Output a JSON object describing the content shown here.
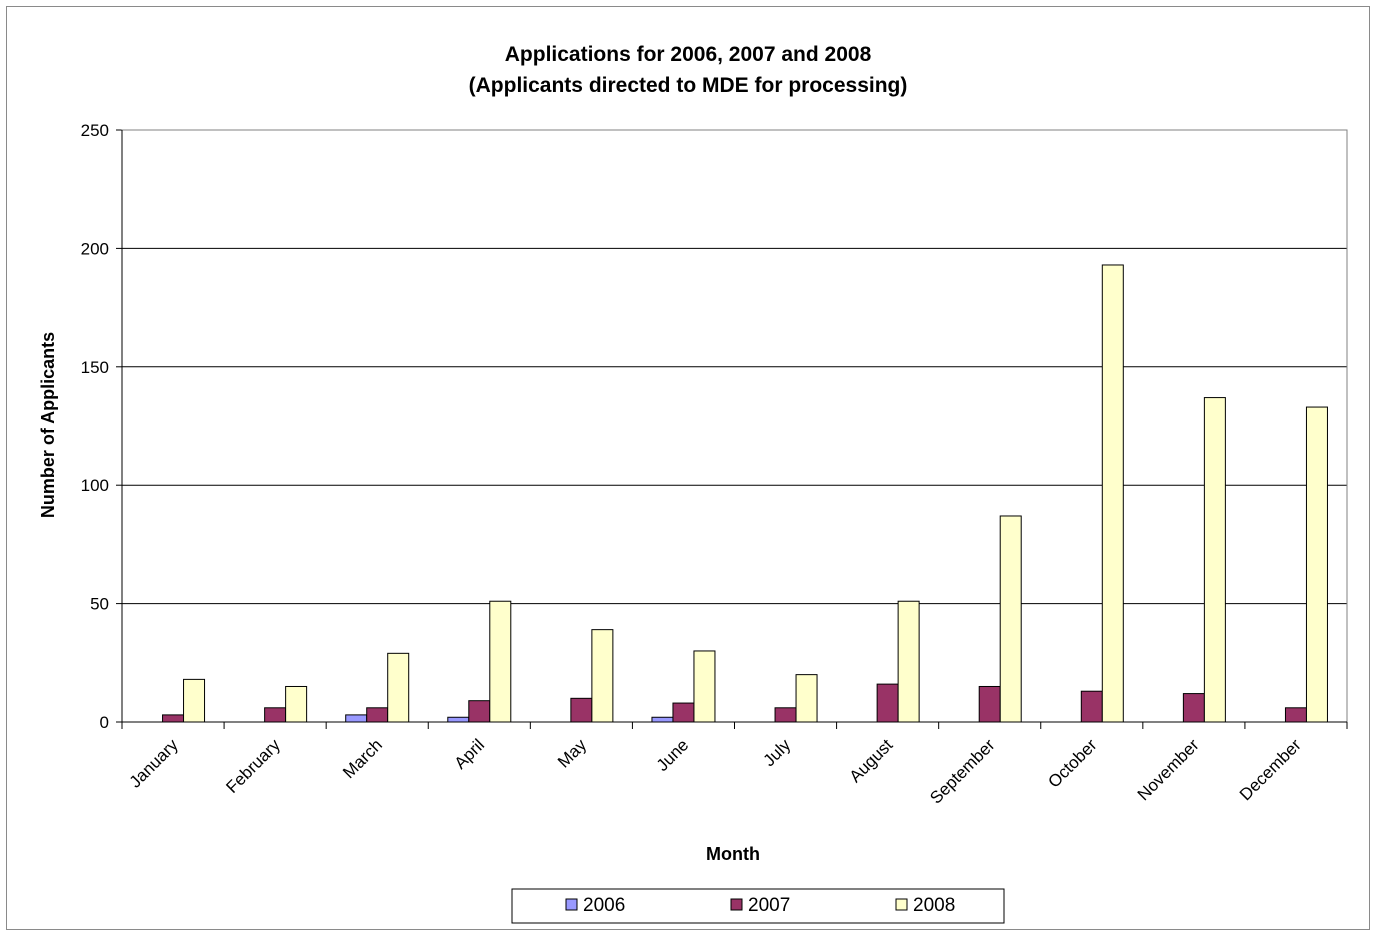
{
  "chart_data": {
    "type": "bar",
    "title": "Applications for 2006, 2007 and 2008",
    "subtitle": "(Applicants directed to MDE for processing)",
    "xlabel": "Month",
    "ylabel": "Number of Applicants",
    "ylim": [
      0,
      250
    ],
    "yticks": [
      "0",
      "50",
      "100",
      "150",
      "200",
      "250"
    ],
    "categories": [
      "January",
      "February",
      "March",
      "April",
      "May",
      "June",
      "July",
      "August",
      "September",
      "October",
      "November",
      "December"
    ],
    "series": [
      {
        "name": "2006",
        "color": "#9999ff",
        "values": [
          0,
          0,
          3,
          2,
          0,
          2,
          0,
          0,
          0,
          0,
          0,
          0
        ]
      },
      {
        "name": "2007",
        "color": "#993366",
        "values": [
          3,
          6,
          6,
          9,
          10,
          8,
          6,
          16,
          15,
          13,
          12,
          6
        ]
      },
      {
        "name": "2008",
        "color": "#ffffcc",
        "values": [
          18,
          15,
          29,
          51,
          39,
          30,
          20,
          51,
          87,
          193,
          137,
          133
        ]
      }
    ],
    "grid": true,
    "legend_position": "bottom"
  }
}
